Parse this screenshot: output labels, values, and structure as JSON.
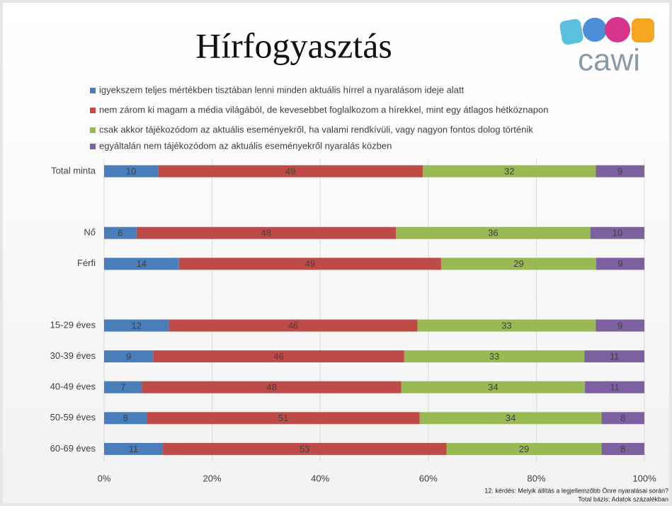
{
  "chart_data": {
    "type": "bar",
    "orientation": "horizontal",
    "stack": "percent",
    "title": "Hírfogyasztás",
    "logo": "cawi",
    "footnote": [
      "12. kérdés: Melyik állítás a legjellemzőbb Önre nyaralásai során?",
      "Total bázis; Adatok százalékban"
    ],
    "categories": [
      "Total minta",
      null,
      "Nő",
      "Férfi",
      null,
      "15-29 éves",
      "30-39 éves",
      "40-49 éves",
      "50-59 éves",
      "60-69 éves"
    ],
    "series": [
      {
        "name": "igyekszem teljes mértékben tisztában lenni minden aktuális hírrel a nyaralásom ideje alatt",
        "color": "#4a7ebb",
        "values": [
          10,
          null,
          6,
          14,
          null,
          12,
          9,
          7,
          8,
          11
        ]
      },
      {
        "name": "nem zárom ki magam a média világából, de kevesebbet foglalkozom a hírekkel, mint egy átlagos hétköznapon",
        "color": "#be4b48",
        "values": [
          49,
          null,
          48,
          49,
          null,
          46,
          46,
          48,
          51,
          53
        ]
      },
      {
        "name": "csak akkor tájékozódom az aktuális eseményekről, ha valami rendkívüli, vagy nagyon fontos dolog történik",
        "color": "#98b954",
        "values": [
          32,
          null,
          36,
          29,
          null,
          33,
          33,
          34,
          34,
          29
        ]
      },
      {
        "name": "egyáltalán nem tájékozódom az aktuális eseményekről nyaralás közben",
        "color": "#7d60a0",
        "values": [
          9,
          null,
          10,
          9,
          null,
          9,
          11,
          11,
          8,
          8
        ]
      }
    ],
    "xlim": [
      0,
      100
    ],
    "xticks": [
      {
        "value": 0,
        "label": "0%"
      },
      {
        "value": 20,
        "label": "20%"
      },
      {
        "value": 40,
        "label": "40%"
      },
      {
        "value": 60,
        "label": "60%"
      },
      {
        "value": 80,
        "label": "80%"
      },
      {
        "value": 100,
        "label": "100%"
      }
    ],
    "grid": true,
    "legend": "top"
  }
}
